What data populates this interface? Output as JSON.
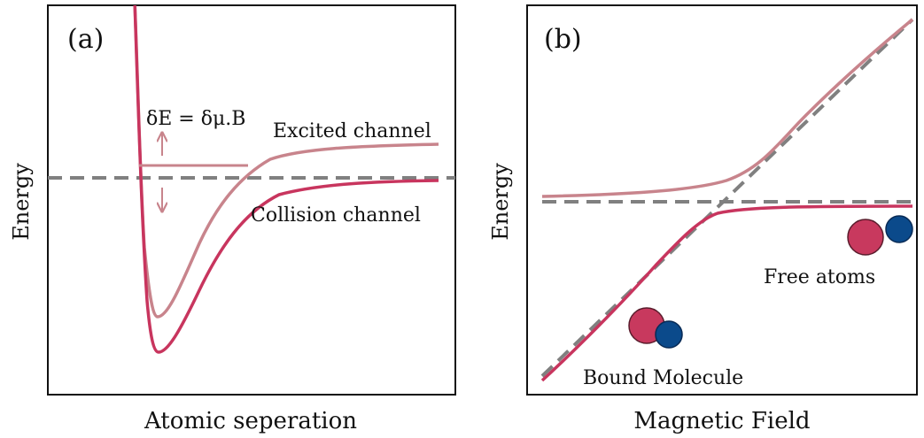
{
  "panel_a": {
    "tag": "(a)",
    "ylabel": "Energy",
    "xlabel": "Atomic seperation",
    "excited_label": "Excited channel",
    "collision_label": "Collision channel",
    "delta_label": "δE = δμ.B"
  },
  "panel_b": {
    "tag": "(b)",
    "ylabel": "Energy",
    "xlabel": "Magnetic Field",
    "free_label": "Free atoms",
    "bound_label": "Bound Molecule"
  },
  "colors": {
    "excited": "#c8848c",
    "collision": "#c8355e",
    "dashed": "#808080",
    "atom_red": "#c8395e",
    "atom_blue": "#0b4a8b",
    "arrow": "#c8848c"
  }
}
